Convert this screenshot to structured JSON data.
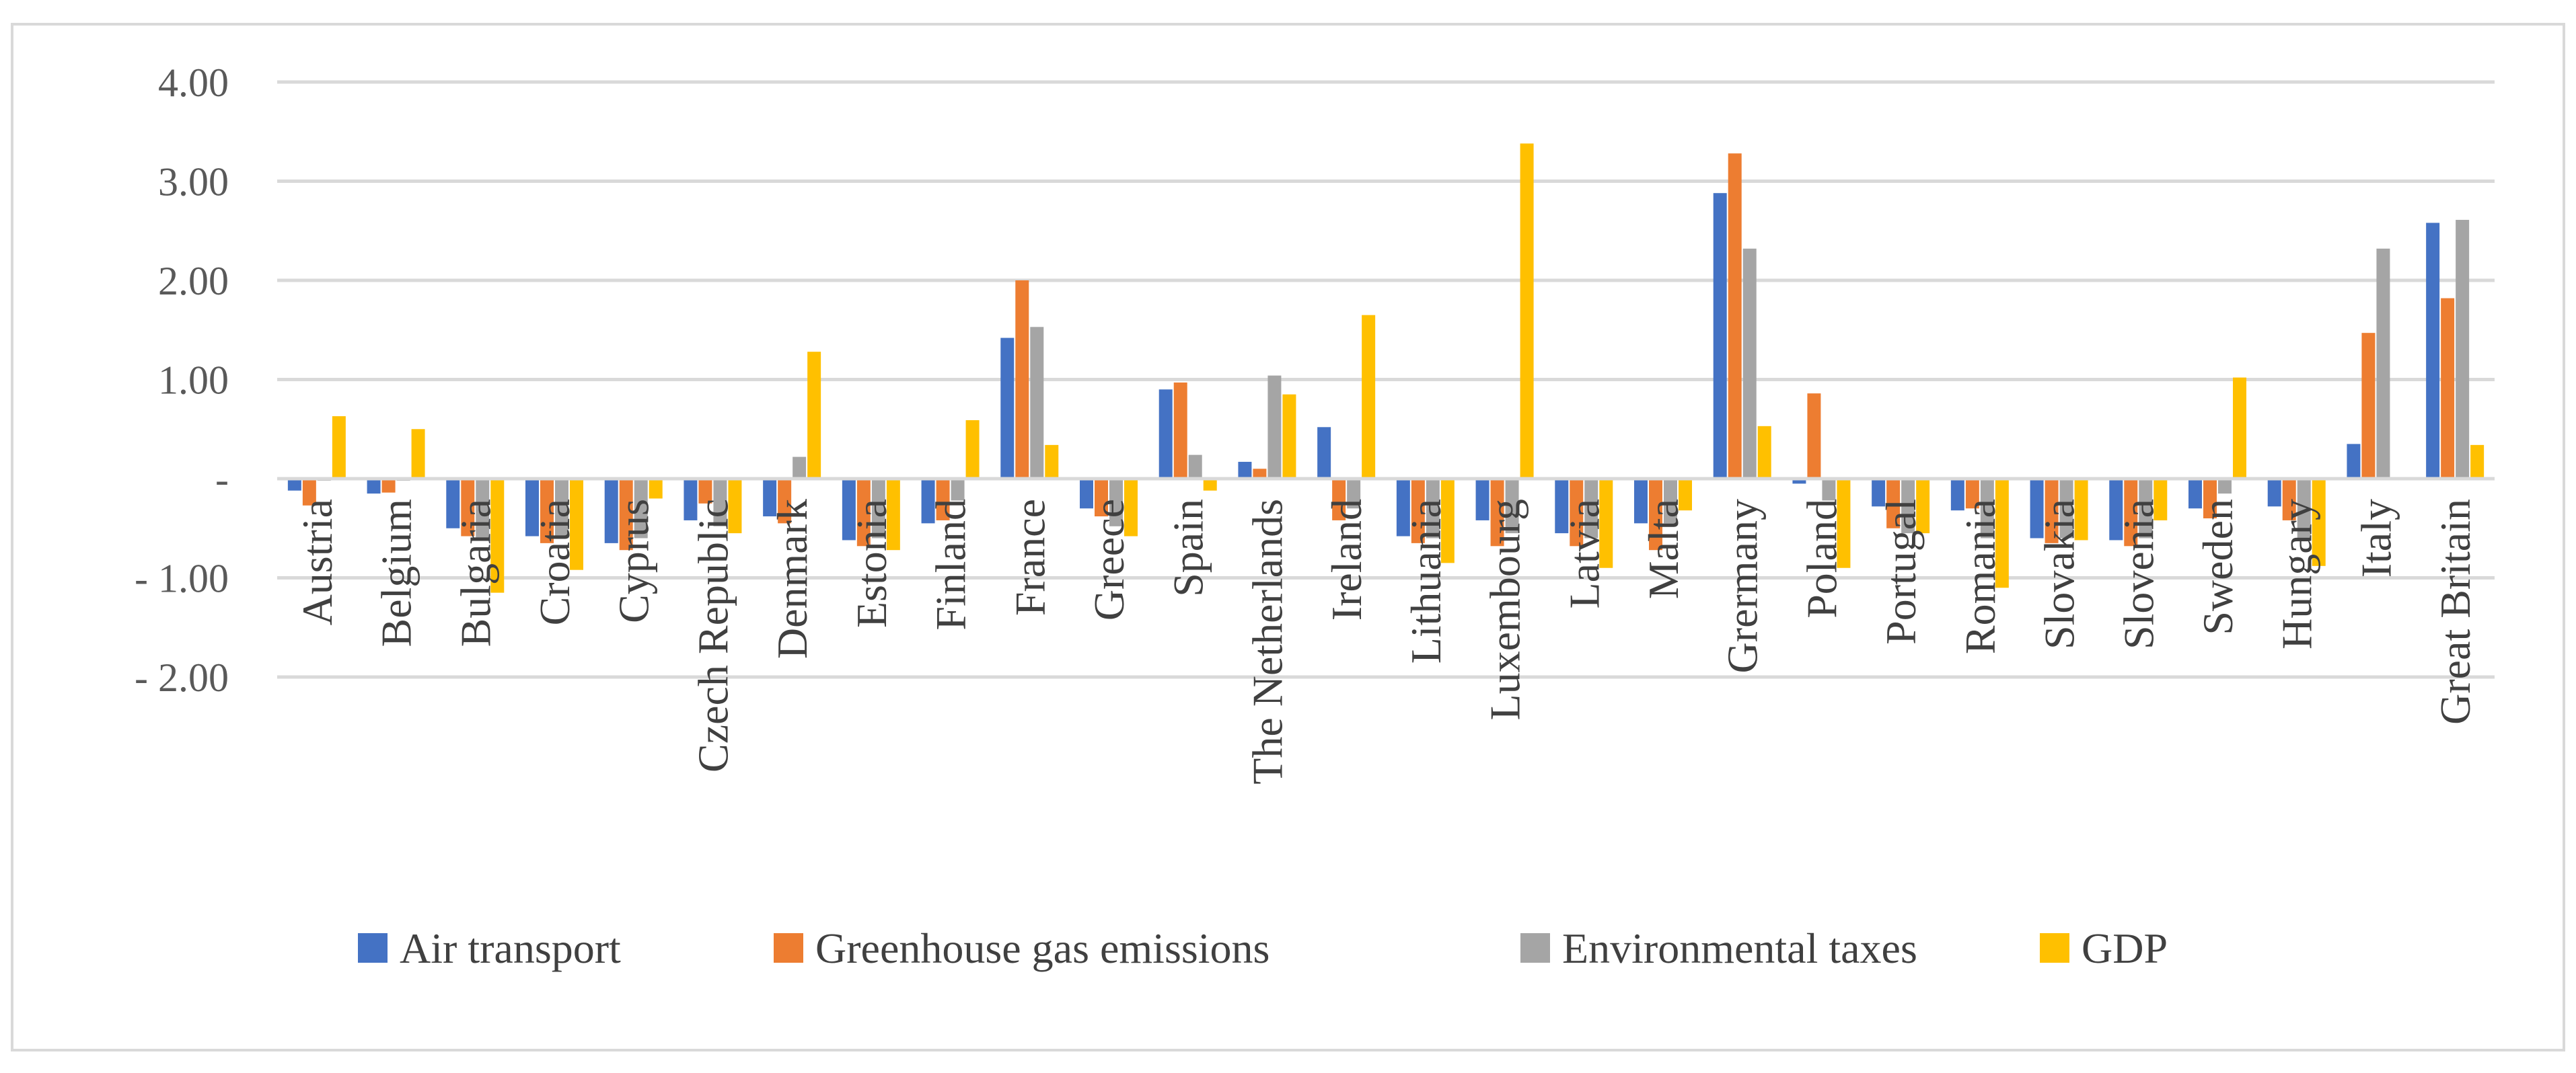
{
  "chart_data": {
    "type": "bar",
    "title": "",
    "xlabel": "",
    "ylabel": "",
    "ylim": [
      -2,
      4
    ],
    "y_ticks": [
      {
        "value": 4,
        "label": "4.00"
      },
      {
        "value": 3,
        "label": "3.00"
      },
      {
        "value": 2,
        "label": "2.00"
      },
      {
        "value": 1,
        "label": "1.00"
      },
      {
        "value": 0,
        "label": "-"
      },
      {
        "value": -1,
        "label": "- 1.00"
      },
      {
        "value": -2,
        "label": "- 2.00"
      }
    ],
    "grid": true,
    "legend_position": "bottom",
    "categories": [
      "Austria",
      "Belgium",
      "Bulgaria",
      "Croatia",
      "Cyprus",
      "Czech Republic",
      "Denmark",
      "Estonia",
      "Finland",
      "France",
      "Greece",
      "Spain",
      "The Netherlands",
      "Ireland",
      "Lithuania",
      "Luxembourg",
      "Latvia",
      "Malta",
      "Grermany",
      "Poland",
      "Portugal",
      "Romania",
      "Slovakia",
      "Slovenia",
      "Sweden",
      "Hungary",
      "Italy",
      "Great Britain"
    ],
    "series": [
      {
        "name": "Air transport",
        "color": "#4472c4",
        "values": [
          -0.12,
          -0.15,
          -0.5,
          -0.58,
          -0.65,
          -0.42,
          -0.38,
          -0.62,
          -0.45,
          1.42,
          -0.3,
          0.9,
          0.17,
          0.52,
          -0.58,
          -0.42,
          -0.55,
          -0.45,
          2.88,
          -0.05,
          -0.28,
          -0.32,
          -0.6,
          -0.62,
          -0.3,
          -0.28,
          0.35,
          2.58
        ]
      },
      {
        "name": "Greenhouse gas emissions",
        "color": "#ed7d31",
        "values": [
          -0.27,
          -0.14,
          -0.58,
          -0.65,
          -0.72,
          -0.25,
          -0.45,
          -0.68,
          -0.42,
          2.0,
          -0.38,
          0.97,
          0.1,
          -0.42,
          -0.65,
          -0.68,
          -0.68,
          -0.72,
          3.28,
          0.86,
          -0.5,
          -0.3,
          -0.65,
          -0.68,
          -0.4,
          -0.42,
          1.47,
          1.82
        ]
      },
      {
        "name": "Environmental taxes",
        "color": "#a5a5a5",
        "values": [
          -0.02,
          -0.02,
          -0.6,
          -0.6,
          -0.6,
          -0.48,
          0.22,
          -0.6,
          -0.22,
          1.53,
          -0.48,
          0.24,
          1.04,
          -0.3,
          -0.6,
          -0.55,
          -0.6,
          -0.45,
          2.32,
          -0.22,
          -0.55,
          -0.6,
          -0.6,
          -0.6,
          -0.15,
          -0.6,
          2.32,
          2.61
        ]
      },
      {
        "name": "GDP",
        "color": "#ffc000",
        "values": [
          0.63,
          0.5,
          -1.15,
          -0.92,
          -0.2,
          -0.55,
          1.28,
          -0.72,
          0.59,
          0.34,
          -0.58,
          -0.12,
          0.85,
          1.65,
          -0.85,
          3.38,
          -0.9,
          -0.32,
          0.53,
          -0.9,
          -0.55,
          -1.1,
          -0.62,
          -0.42,
          1.02,
          -0.88,
          0.0,
          0.34
        ]
      }
    ]
  }
}
